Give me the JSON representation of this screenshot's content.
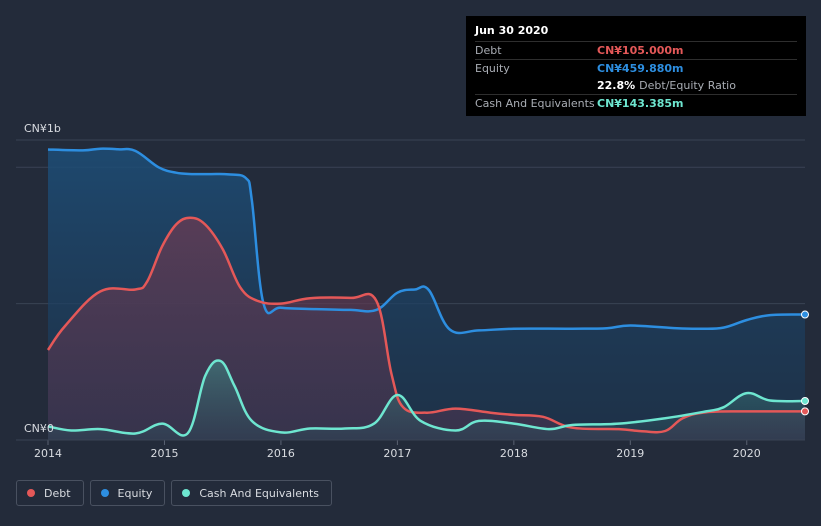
{
  "chart_data": {
    "type": "area",
    "currency_prefix": "CN¥",
    "y_labels": [
      "CN¥1b",
      "CN¥0"
    ],
    "ylim": [
      0,
      1100
    ],
    "xlim": [
      2014,
      2020.5
    ],
    "x_ticks": [
      "2014",
      "2015",
      "2016",
      "2017",
      "2018",
      "2019",
      "2020"
    ],
    "series": [
      {
        "name": "Equity",
        "color": "#2d8ee0",
        "points": [
          [
            2014,
            1065
          ],
          [
            2014.3,
            1062
          ],
          [
            2014.45,
            1068
          ],
          [
            2014.6,
            1066
          ],
          [
            2014.75,
            1060
          ],
          [
            2014.95,
            1000
          ],
          [
            2015.1,
            980
          ],
          [
            2015.25,
            975
          ],
          [
            2015.4,
            975
          ],
          [
            2015.55,
            974
          ],
          [
            2015.7,
            960
          ],
          [
            2015.75,
            880
          ],
          [
            2015.85,
            500
          ],
          [
            2016,
            485
          ],
          [
            2016.3,
            480
          ],
          [
            2016.6,
            477
          ],
          [
            2016.82,
            477
          ],
          [
            2017,
            540
          ],
          [
            2017.15,
            552
          ],
          [
            2017.27,
            550
          ],
          [
            2017.45,
            405
          ],
          [
            2017.7,
            402
          ],
          [
            2018,
            408
          ],
          [
            2018.5,
            408
          ],
          [
            2018.8,
            410
          ],
          [
            2019,
            420
          ],
          [
            2019.4,
            410
          ],
          [
            2019.6,
            408
          ],
          [
            2019.8,
            412
          ],
          [
            2020,
            440
          ],
          [
            2020.2,
            458
          ],
          [
            2020.5,
            460
          ]
        ]
      },
      {
        "name": "Debt",
        "color": "#e45858",
        "points": [
          [
            2014,
            330
          ],
          [
            2014.15,
            420
          ],
          [
            2014.45,
            545
          ],
          [
            2014.75,
            552
          ],
          [
            2014.85,
            580
          ],
          [
            2014.98,
            710
          ],
          [
            2015.1,
            790
          ],
          [
            2015.22,
            815
          ],
          [
            2015.35,
            790
          ],
          [
            2015.5,
            700
          ],
          [
            2015.65,
            560
          ],
          [
            2015.8,
            510
          ],
          [
            2016,
            500
          ],
          [
            2016.25,
            520
          ],
          [
            2016.6,
            521
          ],
          [
            2016.82,
            510
          ],
          [
            2016.95,
            240
          ],
          [
            2017.05,
            120
          ],
          [
            2017.25,
            100
          ],
          [
            2017.5,
            115
          ],
          [
            2017.8,
            100
          ],
          [
            2018,
            92
          ],
          [
            2018.25,
            85
          ],
          [
            2018.5,
            45
          ],
          [
            2018.9,
            40
          ],
          [
            2019.1,
            32
          ],
          [
            2019.3,
            33
          ],
          [
            2019.45,
            80
          ],
          [
            2019.65,
            102
          ],
          [
            2020,
            105
          ],
          [
            2020.5,
            105
          ]
        ]
      },
      {
        "name": "Cash And Equivalents",
        "color": "#6ee6d0",
        "points": [
          [
            2014,
            50
          ],
          [
            2014.2,
            35
          ],
          [
            2014.45,
            40
          ],
          [
            2014.75,
            24
          ],
          [
            2014.98,
            60
          ],
          [
            2015.2,
            25
          ],
          [
            2015.35,
            235
          ],
          [
            2015.48,
            290
          ],
          [
            2015.6,
            200
          ],
          [
            2015.75,
            70
          ],
          [
            2016,
            28
          ],
          [
            2016.25,
            42
          ],
          [
            2016.55,
            42
          ],
          [
            2016.8,
            60
          ],
          [
            2017,
            165
          ],
          [
            2017.2,
            70
          ],
          [
            2017.5,
            35
          ],
          [
            2017.7,
            70
          ],
          [
            2018,
            60
          ],
          [
            2018.3,
            40
          ],
          [
            2018.5,
            55
          ],
          [
            2018.9,
            60
          ],
          [
            2019.3,
            80
          ],
          [
            2019.65,
            105
          ],
          [
            2019.8,
            120
          ],
          [
            2020,
            172
          ],
          [
            2020.2,
            145
          ],
          [
            2020.5,
            143
          ]
        ]
      }
    ],
    "tooltip": {
      "date": "Jun 30 2020",
      "rows": [
        {
          "label": "Debt",
          "value": "CN¥105.000m",
          "color": "#e45858"
        },
        {
          "label": "Equity",
          "value": "CN¥459.880m",
          "color": "#2d8ee0"
        },
        {
          "label": "",
          "value": "22.8%",
          "suffix": "Debt/Equity Ratio",
          "color": "#ffffff"
        },
        {
          "label": "Cash And Equivalents",
          "value": "CN¥143.385m",
          "color": "#6ee6d0"
        }
      ]
    },
    "legend": [
      {
        "label": "Debt",
        "color": "#e45858"
      },
      {
        "label": "Equity",
        "color": "#2d8ee0"
      },
      {
        "label": "Cash And Equivalents",
        "color": "#6ee6d0"
      }
    ]
  }
}
